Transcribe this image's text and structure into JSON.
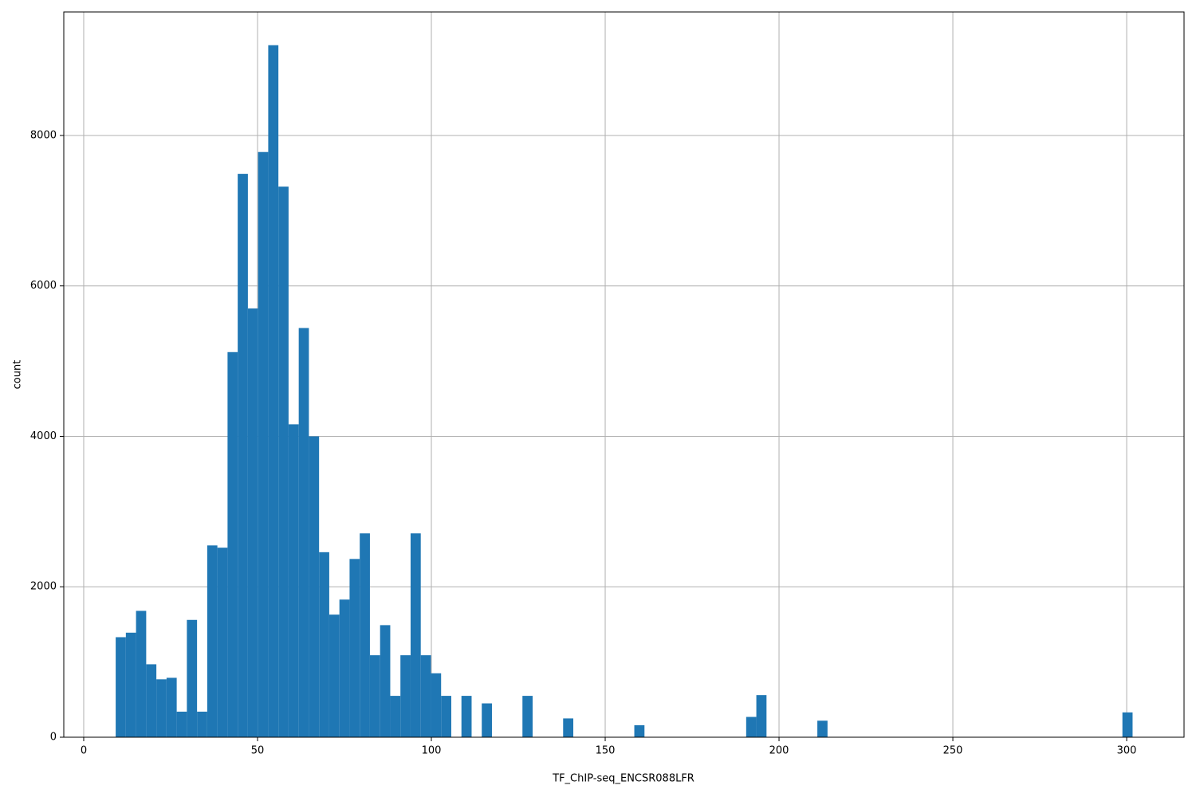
{
  "chart_data": {
    "type": "histogram",
    "xlabel": "TF_ChIP-seq_ENCSR088LFR",
    "ylabel": "count",
    "color": "#1f77b4",
    "grid": true,
    "bins": [
      9.2,
      12.125,
      15.05,
      17.975,
      20.9,
      23.825,
      26.75,
      29.675,
      32.6,
      35.525,
      38.45,
      41.375,
      44.3,
      47.225,
      50.15,
      53.075,
      56,
      58.925,
      61.85,
      64.775,
      67.7,
      70.625,
      73.55,
      76.475,
      79.4,
      82.325,
      85.25,
      88.175,
      91.1,
      94.025,
      96.95,
      99.875,
      102.8,
      105.725,
      108.65,
      111.575,
      114.5,
      117.425,
      120.35,
      123.275,
      126.2,
      129.125,
      132.05,
      134.975,
      137.9,
      140.825,
      143.75,
      146.675,
      149.6,
      152.525,
      155.45,
      158.375,
      161.3,
      164.225,
      167.15,
      170.075,
      173,
      175.925,
      178.85,
      181.775,
      184.7,
      187.625,
      190.55,
      193.475,
      196.4,
      199.325,
      202.25,
      205.175,
      208.1,
      211.025,
      213.95,
      216.875,
      219.8,
      222.725,
      225.65,
      228.575,
      231.5,
      234.425,
      237.35,
      240.275,
      243.2,
      246.125,
      249.05,
      251.975,
      254.9,
      257.825,
      260.75,
      263.675,
      266.6,
      269.525,
      272.45,
      275.375,
      278.3,
      281.225,
      284.15,
      287.075,
      290,
      292.925,
      295.85,
      298.775,
      301.7
    ],
    "values": [
      1330,
      1390,
      1680,
      970,
      770,
      790,
      340,
      1560,
      340,
      2550,
      2520,
      5120,
      7490,
      5700,
      7780,
      9200,
      7320,
      4160,
      5440,
      4000,
      2460,
      1630,
      1830,
      2370,
      2710,
      1090,
      1490,
      550,
      1090,
      2710,
      1090,
      850,
      550,
      0,
      550,
      0,
      450,
      0,
      0,
      0,
      550,
      0,
      0,
      0,
      250,
      0,
      0,
      0,
      0,
      0,
      0,
      160,
      0,
      0,
      0,
      0,
      0,
      0,
      0,
      0,
      0,
      0,
      270,
      560,
      0,
      0,
      0,
      0,
      0,
      220,
      0,
      0,
      0,
      0,
      0,
      0,
      0,
      0,
      0,
      0,
      0,
      0,
      0,
      0,
      0,
      0,
      0,
      0,
      0,
      0,
      0,
      0,
      0,
      0,
      0,
      0,
      0,
      0,
      0,
      330
    ],
    "xlim": [
      -5.73,
      316.5
    ],
    "xticks": [
      0,
      50,
      100,
      150,
      200,
      250,
      300
    ],
    "ylim": [
      0,
      9642
    ],
    "yticks": [
      0,
      2000,
      4000,
      6000,
      8000
    ]
  }
}
